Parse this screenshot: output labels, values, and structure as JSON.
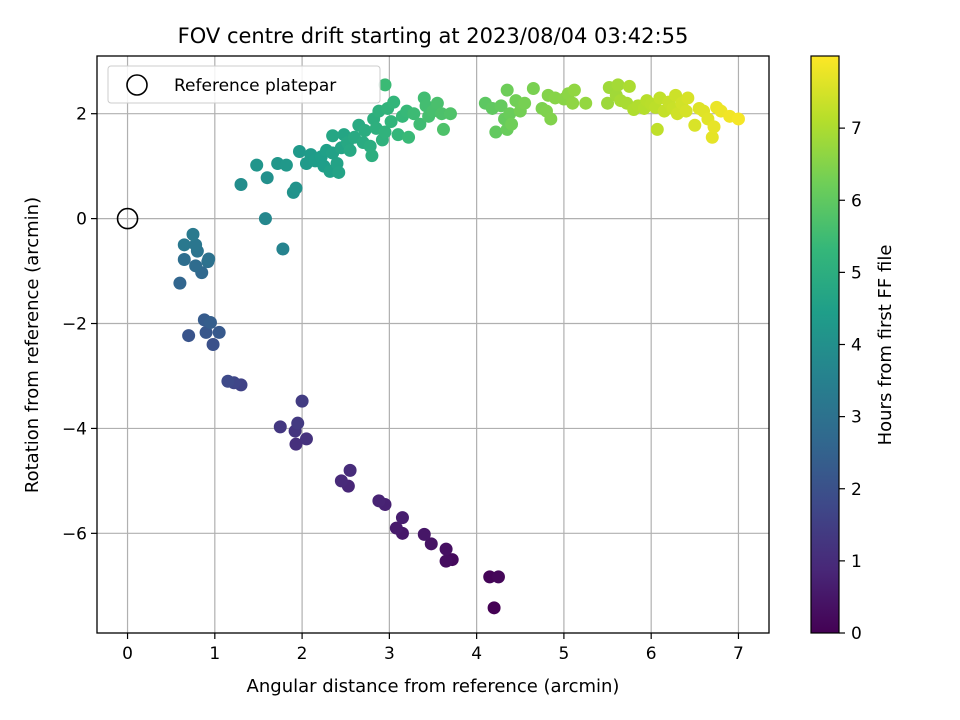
{
  "chart_data": {
    "type": "scatter",
    "title": "FOV centre drift starting at 2023/08/04 03:42:55",
    "xlabel": "Angular distance from reference (arcmin)",
    "ylabel": "Rotation from reference (arcmin)",
    "xlim": [
      -0.35,
      7.35
    ],
    "ylim": [
      -7.9,
      3.1
    ],
    "xticks": [
      0,
      1,
      2,
      3,
      4,
      5,
      6,
      7
    ],
    "xtick_labels": [
      "0",
      "1",
      "2",
      "3",
      "4",
      "5",
      "6",
      "7"
    ],
    "yticks": [
      -6,
      -4,
      -2,
      0,
      2
    ],
    "ytick_labels": [
      "−6",
      "−4",
      "−2",
      "0",
      "2"
    ],
    "grid": true,
    "legend": {
      "position": "upper-left",
      "entries": [
        "Reference platepar"
      ]
    },
    "reference_point": {
      "x": 0,
      "y": 0
    },
    "colorbar": {
      "label": "Hours from first FF file",
      "colormap": "viridis",
      "range": [
        0,
        8
      ],
      "ticks": [
        0,
        1,
        2,
        3,
        4,
        5,
        6,
        7
      ],
      "tick_labels": [
        "0",
        "1",
        "2",
        "3",
        "4",
        "5",
        "6",
        "7"
      ]
    },
    "points": [
      {
        "x": 4.2,
        "y": -7.42,
        "t": 0.0
      },
      {
        "x": 4.15,
        "y": -6.83,
        "t": 0.07
      },
      {
        "x": 4.25,
        "y": -6.83,
        "t": 0.13
      },
      {
        "x": 3.72,
        "y": -6.5,
        "t": 0.2
      },
      {
        "x": 3.65,
        "y": -6.53,
        "t": 0.27
      },
      {
        "x": 3.65,
        "y": -6.3,
        "t": 0.33
      },
      {
        "x": 3.48,
        "y": -6.2,
        "t": 0.4
      },
      {
        "x": 3.4,
        "y": -6.02,
        "t": 0.47
      },
      {
        "x": 3.15,
        "y": -6.0,
        "t": 0.53
      },
      {
        "x": 3.08,
        "y": -5.9,
        "t": 0.6
      },
      {
        "x": 3.15,
        "y": -5.7,
        "t": 0.67
      },
      {
        "x": 2.95,
        "y": -5.45,
        "t": 0.73
      },
      {
        "x": 2.88,
        "y": -5.38,
        "t": 0.8
      },
      {
        "x": 2.53,
        "y": -5.1,
        "t": 0.87
      },
      {
        "x": 2.45,
        "y": -5.0,
        "t": 0.93
      },
      {
        "x": 2.55,
        "y": -4.8,
        "t": 1.0
      },
      {
        "x": 1.93,
        "y": -4.3,
        "t": 1.1
      },
      {
        "x": 2.05,
        "y": -4.2,
        "t": 1.17
      },
      {
        "x": 1.92,
        "y": -4.05,
        "t": 1.23
      },
      {
        "x": 1.75,
        "y": -3.97,
        "t": 1.3
      },
      {
        "x": 1.95,
        "y": -3.9,
        "t": 1.37
      },
      {
        "x": 2.0,
        "y": -3.48,
        "t": 1.43
      },
      {
        "x": 1.3,
        "y": -3.17,
        "t": 1.6
      },
      {
        "x": 1.22,
        "y": -3.13,
        "t": 1.7
      },
      {
        "x": 1.15,
        "y": -3.1,
        "t": 1.8
      },
      {
        "x": 0.98,
        "y": -2.4,
        "t": 2.0
      },
      {
        "x": 0.7,
        "y": -2.23,
        "t": 2.1
      },
      {
        "x": 0.9,
        "y": -2.17,
        "t": 2.17
      },
      {
        "x": 1.05,
        "y": -2.17,
        "t": 2.23
      },
      {
        "x": 0.88,
        "y": -1.93,
        "t": 2.3
      },
      {
        "x": 0.95,
        "y": -1.98,
        "t": 2.37
      },
      {
        "x": 0.6,
        "y": -1.23,
        "t": 2.6
      },
      {
        "x": 0.85,
        "y": -1.03,
        "t": 2.7
      },
      {
        "x": 0.78,
        "y": -0.9,
        "t": 2.8
      },
      {
        "x": 0.65,
        "y": -0.78,
        "t": 2.87
      },
      {
        "x": 0.92,
        "y": -0.82,
        "t": 2.93
      },
      {
        "x": 0.93,
        "y": -0.77,
        "t": 3.0
      },
      {
        "x": 0.8,
        "y": -0.62,
        "t": 3.07
      },
      {
        "x": 0.78,
        "y": -0.5,
        "t": 3.13
      },
      {
        "x": 0.65,
        "y": -0.5,
        "t": 3.2
      },
      {
        "x": 0.75,
        "y": -0.3,
        "t": 3.27
      },
      {
        "x": 1.58,
        "y": 0.0,
        "t": 3.7
      },
      {
        "x": 1.78,
        "y": -0.58,
        "t": 3.6
      },
      {
        "x": 1.3,
        "y": 0.65,
        "t": 3.9
      },
      {
        "x": 1.6,
        "y": 0.78,
        "t": 4.0
      },
      {
        "x": 1.9,
        "y": 0.5,
        "t": 4.05
      },
      {
        "x": 1.93,
        "y": 0.58,
        "t": 4.1
      },
      {
        "x": 1.48,
        "y": 1.02,
        "t": 4.15
      },
      {
        "x": 1.72,
        "y": 1.05,
        "t": 4.2
      },
      {
        "x": 1.82,
        "y": 1.02,
        "t": 4.25
      },
      {
        "x": 1.97,
        "y": 1.28,
        "t": 4.3
      },
      {
        "x": 2.05,
        "y": 1.05,
        "t": 4.33
      },
      {
        "x": 2.1,
        "y": 1.22,
        "t": 4.36
      },
      {
        "x": 2.15,
        "y": 1.1,
        "t": 4.4
      },
      {
        "x": 2.22,
        "y": 1.18,
        "t": 4.43
      },
      {
        "x": 2.25,
        "y": 1.0,
        "t": 4.46
      },
      {
        "x": 2.28,
        "y": 1.3,
        "t": 4.5
      },
      {
        "x": 2.32,
        "y": 0.9,
        "t": 4.53
      },
      {
        "x": 2.35,
        "y": 1.25,
        "t": 4.56
      },
      {
        "x": 2.4,
        "y": 1.05,
        "t": 4.6
      },
      {
        "x": 2.42,
        "y": 0.88,
        "t": 4.63
      },
      {
        "x": 2.45,
        "y": 1.35,
        "t": 4.66
      },
      {
        "x": 2.48,
        "y": 1.6,
        "t": 4.7
      },
      {
        "x": 2.35,
        "y": 1.58,
        "t": 4.73
      },
      {
        "x": 2.52,
        "y": 1.45,
        "t": 4.76
      },
      {
        "x": 2.55,
        "y": 1.3,
        "t": 4.8
      },
      {
        "x": 2.6,
        "y": 1.55,
        "t": 4.83
      },
      {
        "x": 2.65,
        "y": 1.78,
        "t": 4.86
      },
      {
        "x": 2.7,
        "y": 1.45,
        "t": 4.9
      },
      {
        "x": 2.72,
        "y": 1.68,
        "t": 4.93
      },
      {
        "x": 2.78,
        "y": 1.38,
        "t": 4.96
      },
      {
        "x": 2.8,
        "y": 1.2,
        "t": 5.0
      },
      {
        "x": 2.82,
        "y": 1.9,
        "t": 5.03
      },
      {
        "x": 2.85,
        "y": 1.72,
        "t": 5.06
      },
      {
        "x": 2.88,
        "y": 2.05,
        "t": 5.1
      },
      {
        "x": 2.92,
        "y": 1.5,
        "t": 5.13
      },
      {
        "x": 2.95,
        "y": 1.65,
        "t": 5.16
      },
      {
        "x": 2.98,
        "y": 2.1,
        "t": 5.2
      },
      {
        "x": 3.02,
        "y": 1.85,
        "t": 5.23
      },
      {
        "x": 3.05,
        "y": 2.22,
        "t": 5.26
      },
      {
        "x": 3.1,
        "y": 1.6,
        "t": 5.3
      },
      {
        "x": 3.15,
        "y": 1.95,
        "t": 5.33
      },
      {
        "x": 3.2,
        "y": 2.05,
        "t": 5.36
      },
      {
        "x": 3.22,
        "y": 1.55,
        "t": 5.4
      },
      {
        "x": 2.95,
        "y": 2.55,
        "t": 5.43
      },
      {
        "x": 3.28,
        "y": 2.0,
        "t": 5.46
      },
      {
        "x": 3.35,
        "y": 1.8,
        "t": 5.5
      },
      {
        "x": 3.4,
        "y": 2.3,
        "t": 5.53
      },
      {
        "x": 3.42,
        "y": 2.15,
        "t": 5.56
      },
      {
        "x": 3.45,
        "y": 1.95,
        "t": 5.6
      },
      {
        "x": 3.5,
        "y": 2.05,
        "t": 5.63
      },
      {
        "x": 3.55,
        "y": 2.2,
        "t": 5.66
      },
      {
        "x": 3.6,
        "y": 2.0,
        "t": 5.7
      },
      {
        "x": 3.62,
        "y": 1.7,
        "t": 5.73
      },
      {
        "x": 3.7,
        "y": 2.0,
        "t": 5.76
      },
      {
        "x": 4.1,
        "y": 2.2,
        "t": 5.95
      },
      {
        "x": 4.18,
        "y": 2.1,
        "t": 6.0
      },
      {
        "x": 4.22,
        "y": 1.65,
        "t": 6.03
      },
      {
        "x": 4.28,
        "y": 2.15,
        "t": 6.06
      },
      {
        "x": 4.32,
        "y": 1.9,
        "t": 6.1
      },
      {
        "x": 4.35,
        "y": 1.7,
        "t": 6.13
      },
      {
        "x": 4.38,
        "y": 2.0,
        "t": 6.16
      },
      {
        "x": 4.35,
        "y": 2.45,
        "t": 6.2
      },
      {
        "x": 4.4,
        "y": 1.8,
        "t": 6.23
      },
      {
        "x": 4.45,
        "y": 2.25,
        "t": 6.26
      },
      {
        "x": 4.5,
        "y": 2.05,
        "t": 6.3
      },
      {
        "x": 4.55,
        "y": 2.2,
        "t": 6.33
      },
      {
        "x": 4.65,
        "y": 2.48,
        "t": 6.36
      },
      {
        "x": 4.75,
        "y": 2.1,
        "t": 6.4
      },
      {
        "x": 4.8,
        "y": 2.05,
        "t": 6.43
      },
      {
        "x": 4.85,
        "y": 1.9,
        "t": 6.46
      },
      {
        "x": 4.82,
        "y": 2.35,
        "t": 6.5
      },
      {
        "x": 4.9,
        "y": 2.3,
        "t": 6.53
      },
      {
        "x": 5.0,
        "y": 2.28,
        "t": 6.56
      },
      {
        "x": 5.05,
        "y": 2.38,
        "t": 6.6
      },
      {
        "x": 5.1,
        "y": 2.2,
        "t": 6.63
      },
      {
        "x": 5.12,
        "y": 2.45,
        "t": 6.66
      },
      {
        "x": 5.25,
        "y": 2.2,
        "t": 6.7
      },
      {
        "x": 5.5,
        "y": 2.2,
        "t": 6.8
      },
      {
        "x": 5.52,
        "y": 2.5,
        "t": 6.83
      },
      {
        "x": 5.6,
        "y": 2.35,
        "t": 6.86
      },
      {
        "x": 5.62,
        "y": 2.55,
        "t": 6.9
      },
      {
        "x": 5.65,
        "y": 2.25,
        "t": 6.93
      },
      {
        "x": 5.72,
        "y": 2.2,
        "t": 6.96
      },
      {
        "x": 5.75,
        "y": 2.52,
        "t": 7.0
      },
      {
        "x": 5.8,
        "y": 2.08,
        "t": 7.03
      },
      {
        "x": 5.85,
        "y": 2.15,
        "t": 7.06
      },
      {
        "x": 5.92,
        "y": 2.1,
        "t": 7.1
      },
      {
        "x": 5.95,
        "y": 2.25,
        "t": 7.13
      },
      {
        "x": 6.0,
        "y": 2.18,
        "t": 7.16
      },
      {
        "x": 6.05,
        "y": 2.12,
        "t": 7.2
      },
      {
        "x": 6.07,
        "y": 1.7,
        "t": 7.23
      },
      {
        "x": 6.1,
        "y": 2.3,
        "t": 7.26
      },
      {
        "x": 6.15,
        "y": 2.05,
        "t": 7.3
      },
      {
        "x": 6.2,
        "y": 2.22,
        "t": 7.33
      },
      {
        "x": 6.25,
        "y": 2.1,
        "t": 7.36
      },
      {
        "x": 6.28,
        "y": 2.35,
        "t": 7.4
      },
      {
        "x": 6.3,
        "y": 2.0,
        "t": 7.43
      },
      {
        "x": 6.35,
        "y": 2.2,
        "t": 7.46
      },
      {
        "x": 6.4,
        "y": 2.05,
        "t": 7.5
      },
      {
        "x": 6.42,
        "y": 2.3,
        "t": 7.53
      },
      {
        "x": 6.5,
        "y": 1.78,
        "t": 7.56
      },
      {
        "x": 6.55,
        "y": 2.1,
        "t": 7.6
      },
      {
        "x": 6.6,
        "y": 2.05,
        "t": 7.63
      },
      {
        "x": 6.65,
        "y": 1.9,
        "t": 7.66
      },
      {
        "x": 6.7,
        "y": 1.55,
        "t": 7.7
      },
      {
        "x": 6.72,
        "y": 1.75,
        "t": 7.73
      },
      {
        "x": 6.75,
        "y": 2.12,
        "t": 7.76
      },
      {
        "x": 6.8,
        "y": 2.05,
        "t": 7.8
      },
      {
        "x": 6.9,
        "y": 1.95,
        "t": 7.85
      },
      {
        "x": 7.0,
        "y": 1.9,
        "t": 7.9
      }
    ]
  }
}
